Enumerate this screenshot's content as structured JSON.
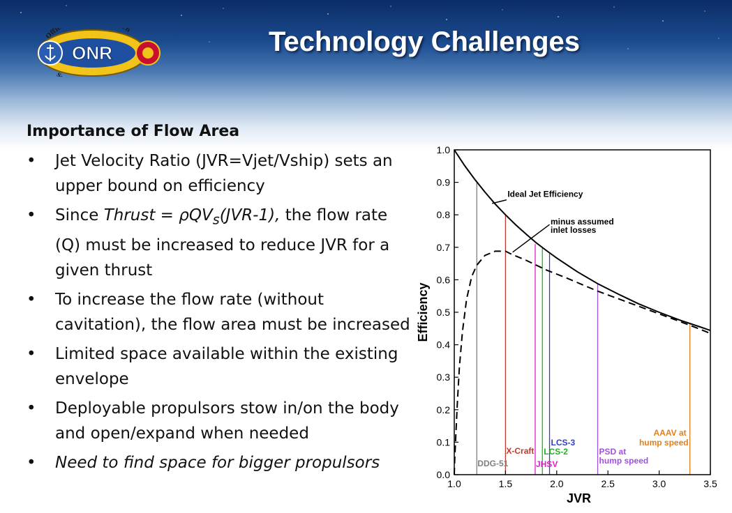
{
  "slide": {
    "title": "Technology Challenges",
    "logo": {
      "emblem_text_top": "Office of Naval Research",
      "emblem_text_bottom": "Science & Technology",
      "wordmark": "ONR"
    }
  },
  "content": {
    "heading": "Importance of Flow Area",
    "bullets": [
      "Jet Velocity Ratio (JVR=Vjet/Vship) sets an upper bound on efficiency",
      "Limited space available within the existing envelope",
      "Deployable propulsors stow in/on the body and open/expand when needed",
      "Need to find space for bigger propulsors"
    ],
    "thrust_bullet": {
      "prefix": "Since ",
      "formula_lhs": "Thrust = ",
      "rho": "ρ",
      "q_v": "QV",
      "sub_s": "s",
      "formula_rhs": "(JVR-1),",
      "suffix": " the flow rate (Q) must be increased to reduce JVR for a given thrust"
    },
    "flow_bullet": "To increase the flow rate (without cavitation), the flow area must be increased"
  },
  "colors": {
    "title": "#ffffff",
    "header_dark": "#0b2d66"
  },
  "chart_data": {
    "type": "line",
    "xlabel": "JVR",
    "ylabel": "Efficiency",
    "xlim": [
      1.0,
      3.5
    ],
    "ylim": [
      0.0,
      1.0
    ],
    "xticks": [
      "1.0",
      "1.5",
      "2.0",
      "2.5",
      "3.0",
      "3.5"
    ],
    "xtick_values": [
      1.0,
      1.5,
      2.0,
      2.5,
      3.0,
      3.5
    ],
    "yticks": [
      "0.0",
      "0.1",
      "0.2",
      "0.3",
      "0.4",
      "0.5",
      "0.6",
      "0.7",
      "0.8",
      "0.9",
      "1.0"
    ],
    "ytick_values": [
      0.0,
      0.1,
      0.2,
      0.3,
      0.4,
      0.5,
      0.6,
      0.7,
      0.8,
      0.9,
      1.0
    ],
    "series": [
      {
        "name": "Ideal Jet Efficiency",
        "style": "solid",
        "x": [
          1.0,
          1.1,
          1.2,
          1.3,
          1.4,
          1.5,
          1.6,
          1.7,
          1.8,
          1.9,
          2.0,
          2.2,
          2.4,
          2.6,
          2.8,
          3.0,
          3.2,
          3.4,
          3.5
        ],
        "y": [
          1.0,
          0.952,
          0.909,
          0.87,
          0.833,
          0.8,
          0.769,
          0.741,
          0.714,
          0.69,
          0.667,
          0.625,
          0.588,
          0.556,
          0.526,
          0.5,
          0.476,
          0.455,
          0.444
        ]
      },
      {
        "name": "minus assumed inlet losses",
        "style": "dashed",
        "x": [
          1.0,
          1.005,
          1.015,
          1.03,
          1.05,
          1.08,
          1.12,
          1.17,
          1.22,
          1.3,
          1.4,
          1.5,
          1.55,
          1.7,
          1.9,
          2.1,
          2.4,
          2.7,
          3.0,
          3.3,
          3.5
        ],
        "y": [
          0.0,
          0.05,
          0.12,
          0.22,
          0.33,
          0.44,
          0.54,
          0.61,
          0.645,
          0.675,
          0.688,
          0.688,
          0.68,
          0.66,
          0.63,
          0.605,
          0.565,
          0.53,
          0.495,
          0.46,
          0.435
        ]
      }
    ],
    "markers": [
      {
        "label": "DDG-51",
        "x": 1.22,
        "y": 0.9,
        "color": "#808080"
      },
      {
        "label": "X-Craft",
        "x": 1.5,
        "y": 0.8,
        "color": "#c0392b"
      },
      {
        "label": "JHSV",
        "x": 1.79,
        "y": 0.71,
        "color": "#e020c8"
      },
      {
        "label": "LCS-2",
        "x": 1.86,
        "y": 0.7,
        "color": "#22b022"
      },
      {
        "label": "LCS-3",
        "x": 1.93,
        "y": 0.68,
        "color": "#3040c0"
      },
      {
        "label": "PSD at hump speed",
        "x": 2.4,
        "y": 0.59,
        "color": "#a050e0"
      },
      {
        "label": "AAAV at hump speed",
        "x": 3.3,
        "y": 0.465,
        "color": "#e08020"
      }
    ],
    "annotations": [
      {
        "text": "Ideal Jet Efficiency"
      },
      {
        "text": "minus assumed"
      },
      {
        "text": "inlet losses"
      }
    ]
  }
}
